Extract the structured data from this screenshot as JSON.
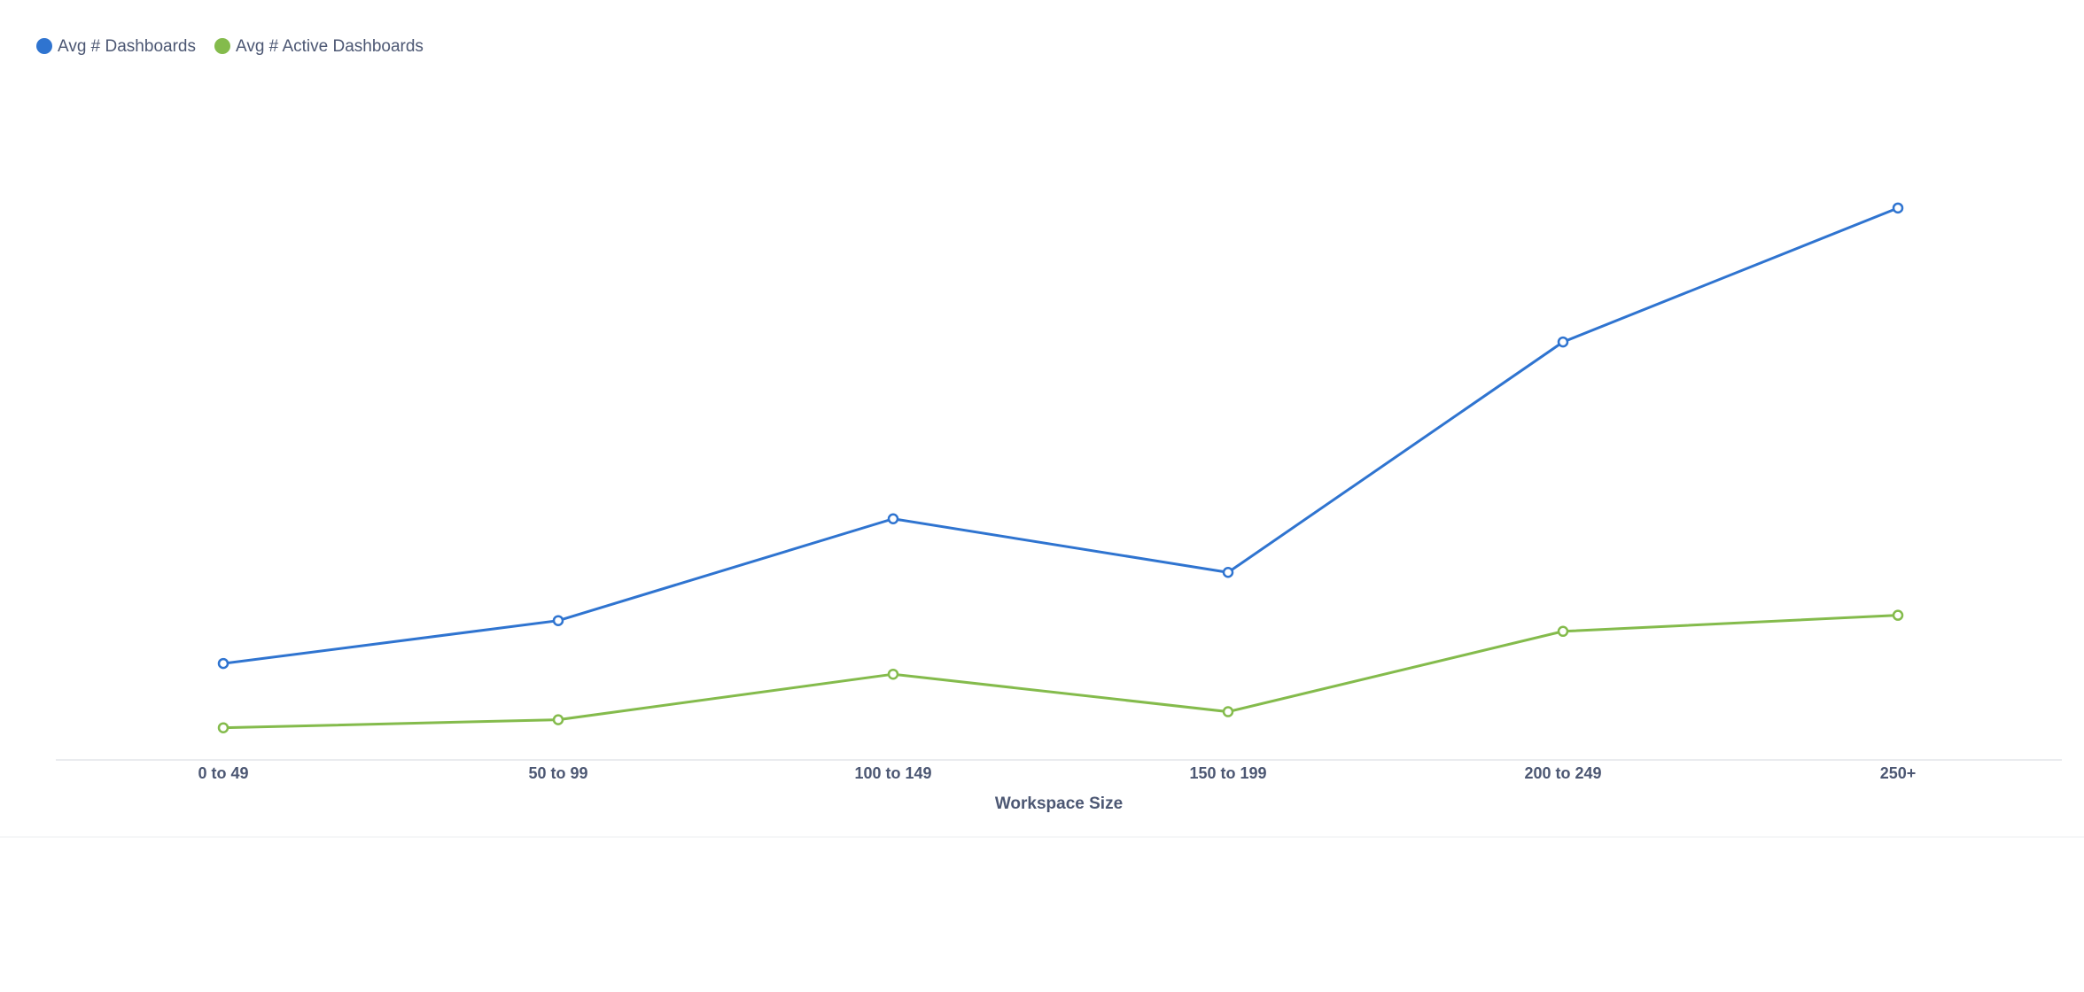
{
  "chart_data": {
    "type": "line",
    "x_label": "Workspace Size",
    "categories": [
      "0 to 49",
      "50 to 99",
      "100 to 149",
      "150 to 199",
      "200 to 249",
      "250+"
    ],
    "series": [
      {
        "name": "Avg # Dashboards",
        "color": "#2f74d0",
        "values": [
          1.8,
          2.6,
          4.5,
          3.5,
          7.8,
          10.3
        ]
      },
      {
        "name": "Avg # Active Dashboards",
        "color": "#84bb4c",
        "values": [
          0.6,
          0.75,
          1.6,
          0.9,
          2.4,
          2.7
        ]
      }
    ],
    "ylim": [
      0,
      12
    ],
    "grid": false,
    "legend": "top-left"
  }
}
